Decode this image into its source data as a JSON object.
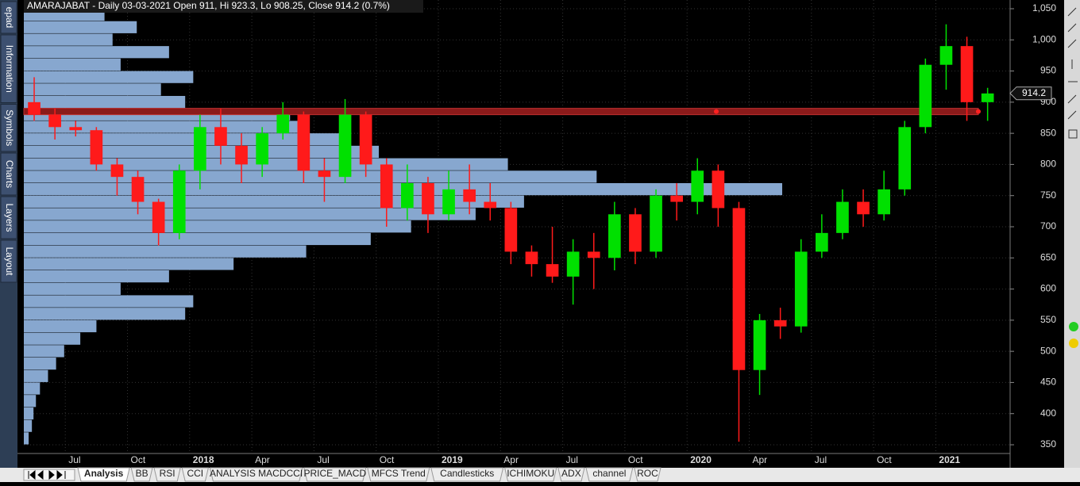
{
  "chart_data": {
    "type": "candlestick",
    "title": "AMARAJABAT - Daily 03-03-2021 Open 911, Hi 923.3, Lo 908.25, Close 914.2 (0.7%)",
    "categories": [
      null,
      null,
      "Jul",
      null,
      null,
      "Oct",
      null,
      null,
      "2018",
      null,
      null,
      "Apr",
      null,
      null,
      "Jul",
      null,
      null,
      "Oct",
      null,
      null,
      "2019",
      null,
      null,
      "Apr",
      null,
      null,
      "Jul",
      null,
      null,
      "Oct",
      null,
      null,
      "2020",
      null,
      null,
      "Apr",
      null,
      null,
      "Jul",
      null,
      null,
      "Oct",
      null,
      null,
      "2021",
      null,
      null
    ],
    "open": [
      900,
      880,
      860,
      855,
      800,
      780,
      740,
      690,
      790,
      860,
      830,
      800,
      850,
      880,
      790,
      780,
      880,
      800,
      730,
      770,
      720,
      760,
      740,
      730,
      660,
      640,
      620,
      660,
      650,
      720,
      660,
      750,
      740,
      790,
      730,
      470,
      550,
      540,
      660,
      690,
      740,
      720,
      760,
      860,
      960,
      990,
      900
    ],
    "high": [
      940,
      890,
      870,
      860,
      810,
      790,
      745,
      800,
      880,
      890,
      850,
      860,
      900,
      885,
      810,
      905,
      885,
      810,
      800,
      780,
      790,
      800,
      770,
      740,
      670,
      700,
      680,
      690,
      740,
      730,
      760,
      770,
      810,
      800,
      740,
      560,
      570,
      680,
      720,
      760,
      760,
      790,
      870,
      970,
      1025,
      1005,
      923
    ],
    "low": [
      870,
      840,
      845,
      790,
      750,
      720,
      670,
      680,
      760,
      800,
      770,
      780,
      840,
      770,
      740,
      770,
      780,
      700,
      710,
      690,
      710,
      720,
      710,
      640,
      620,
      610,
      575,
      600,
      630,
      640,
      650,
      710,
      720,
      700,
      355,
      430,
      520,
      530,
      650,
      680,
      700,
      710,
      750,
      850,
      920,
      870,
      870
    ],
    "close": [
      880,
      860,
      855,
      800,
      780,
      740,
      690,
      790,
      860,
      830,
      800,
      850,
      880,
      790,
      780,
      880,
      800,
      730,
      770,
      720,
      760,
      740,
      730,
      660,
      640,
      620,
      660,
      650,
      720,
      660,
      750,
      740,
      790,
      730,
      470,
      550,
      540,
      660,
      690,
      740,
      720,
      760,
      860,
      960,
      990,
      900,
      914
    ],
    "up_color": "#00e000",
    "down_color": "#ff1a1a",
    "ylim": [
      336,
      1064
    ],
    "yticks": [
      350,
      400,
      450,
      500,
      550,
      600,
      650,
      700,
      750,
      800,
      850,
      900,
      950,
      {
        "value": 1000,
        "label": "1,000"
      },
      {
        "value": 1050,
        "label": "1,050"
      }
    ],
    "grid": true,
    "hline": 885,
    "hline_color": "#8b1a1a",
    "last_close": 914.2,
    "volume_profile": {
      "color": "#87a7cf",
      "bins": [
        350,
        370,
        390,
        410,
        430,
        450,
        470,
        490,
        510,
        530,
        550,
        570,
        590,
        610,
        630,
        650,
        670,
        690,
        710,
        730,
        750,
        770,
        790,
        810,
        830,
        850,
        870,
        890,
        910,
        930,
        950,
        970,
        990,
        1010,
        1030,
        1050
      ],
      "values": [
        6,
        10,
        12,
        15,
        20,
        30,
        40,
        50,
        70,
        90,
        200,
        210,
        120,
        180,
        260,
        350,
        430,
        480,
        560,
        620,
        940,
        710,
        600,
        440,
        400,
        340,
        330,
        200,
        170,
        210,
        120,
        180,
        110,
        140,
        100
      ]
    }
  },
  "side_tabs": [
    "epad",
    "Information",
    "Symbols",
    "Charts",
    "Layers",
    "Layout"
  ],
  "tabs": [
    "Analysis",
    "BB",
    "RSI",
    "CCI",
    "ANALYSIS MACDCCI",
    "PRICE_MACD",
    "MFCS Trend",
    "Candlesticks",
    "ICHIMOKU",
    "ADX",
    "channel",
    "ROC"
  ]
}
